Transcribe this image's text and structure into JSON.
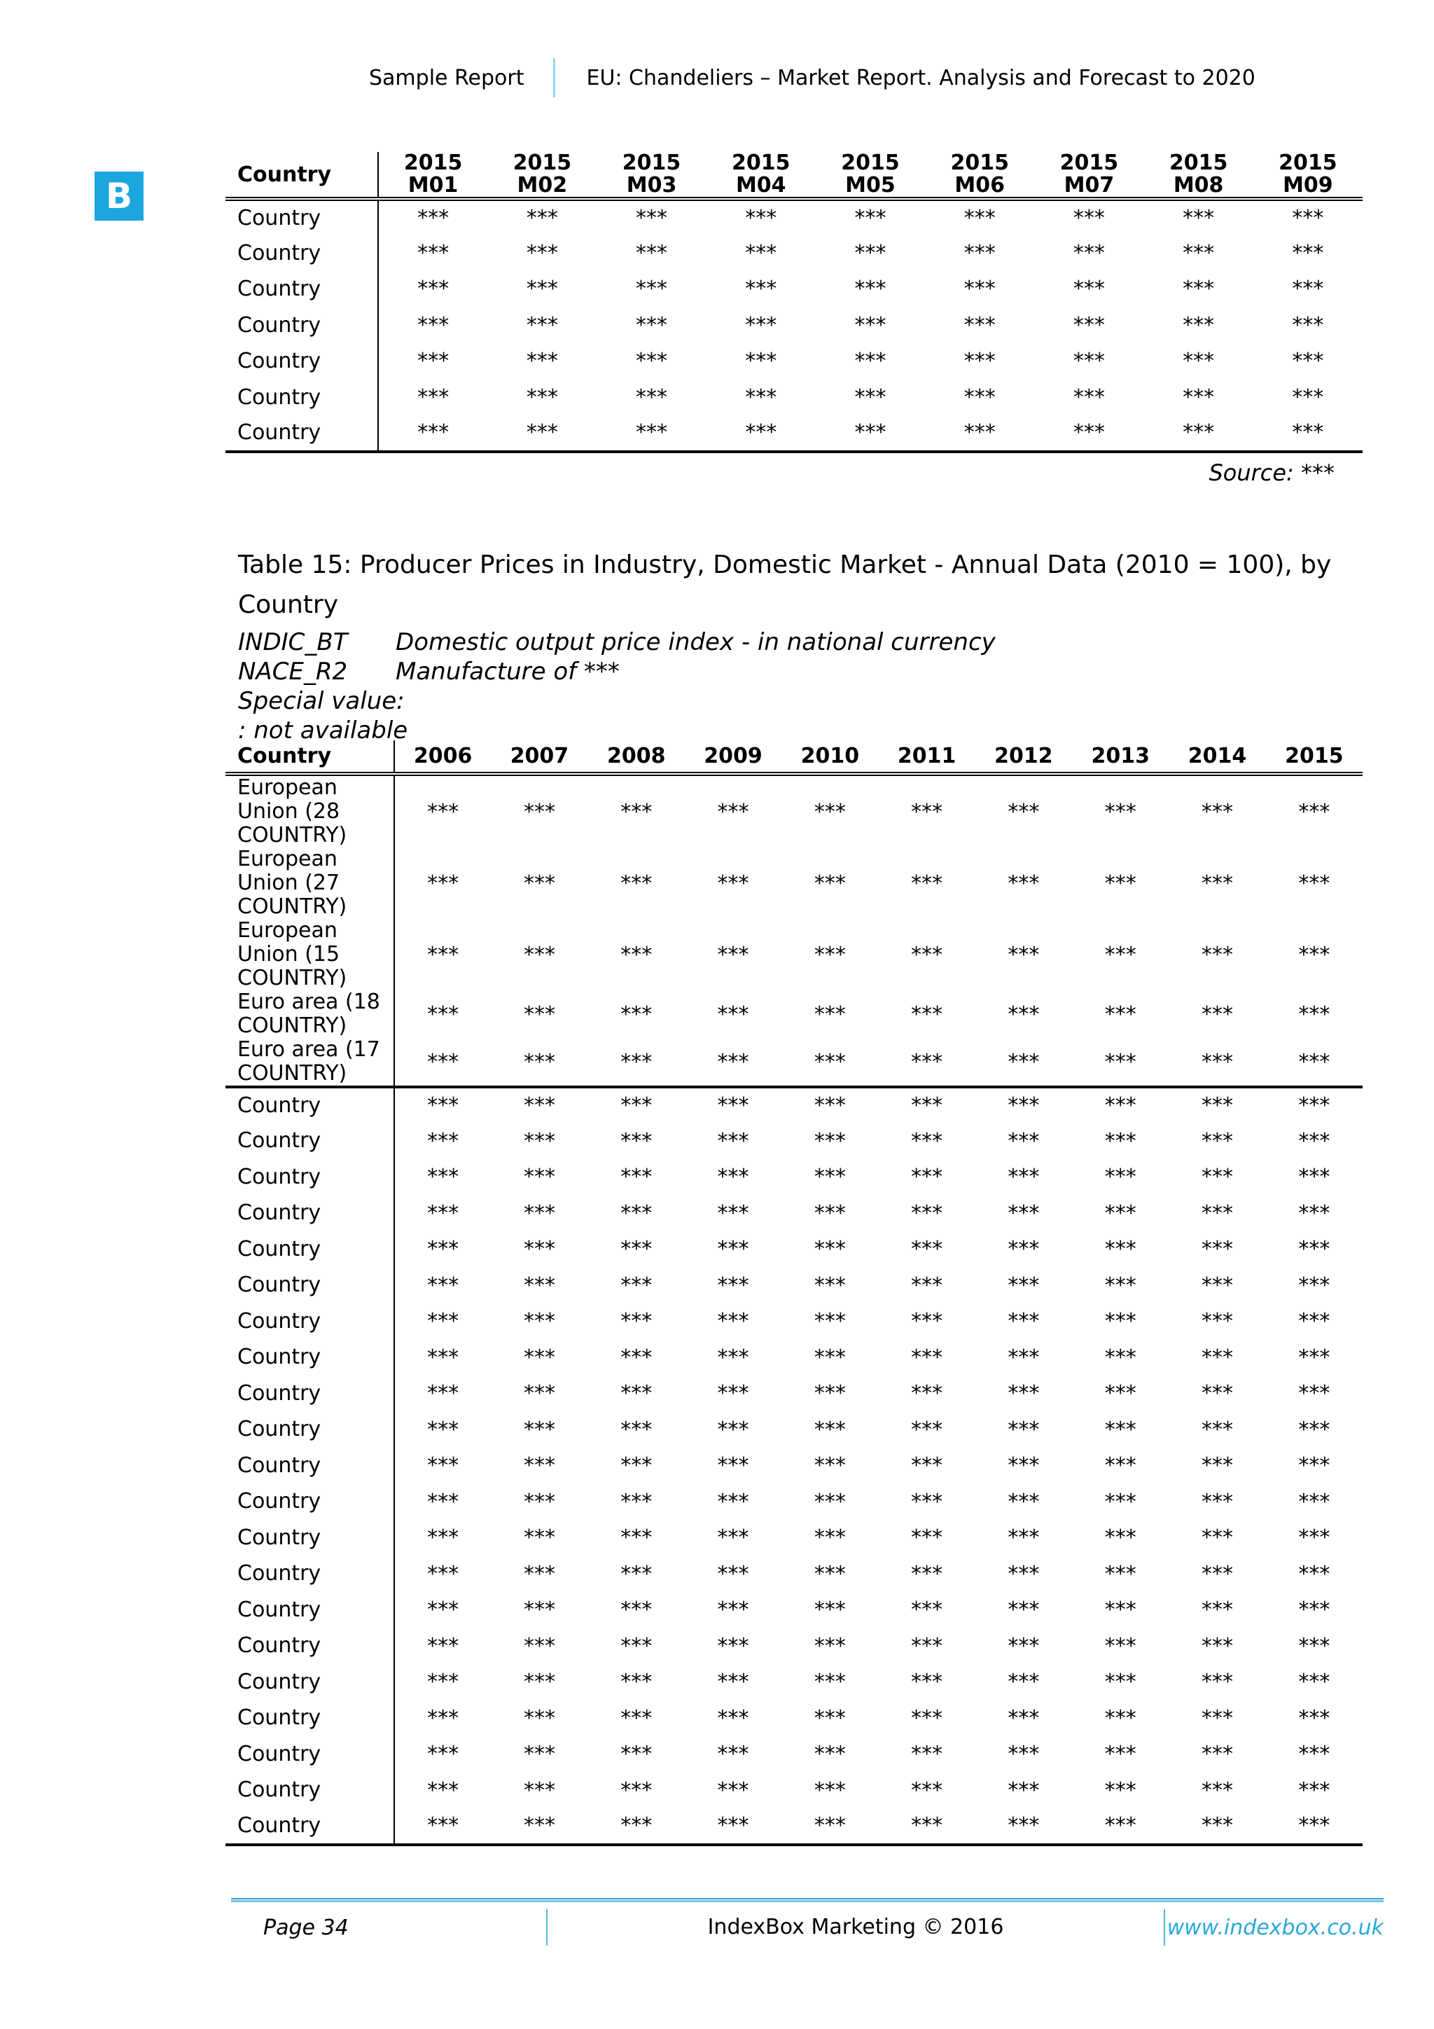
{
  "header": {
    "sample_label": "Sample Report",
    "title": "EU: Chandeliers – Market Report. Analysis and Forecast to 2020"
  },
  "logo_letter": "B",
  "colors": {
    "accent_blue": "#1ca6e0",
    "link_blue": "#29a8db",
    "footer_line_blue": "#6ec9ea"
  },
  "monthly_table": {
    "country_header": "Country",
    "year": "2015",
    "months": [
      "M01",
      "M02",
      "M03",
      "M04",
      "M05",
      "M06",
      "M07",
      "M08",
      "M09"
    ],
    "rows": [
      {
        "label": "Country",
        "values": [
          "***",
          "***",
          "***",
          "***",
          "***",
          "***",
          "***",
          "***",
          "***"
        ]
      },
      {
        "label": "Country",
        "values": [
          "***",
          "***",
          "***",
          "***",
          "***",
          "***",
          "***",
          "***",
          "***"
        ]
      },
      {
        "label": "Country",
        "values": [
          "***",
          "***",
          "***",
          "***",
          "***",
          "***",
          "***",
          "***",
          "***"
        ]
      },
      {
        "label": "Country",
        "values": [
          "***",
          "***",
          "***",
          "***",
          "***",
          "***",
          "***",
          "***",
          "***"
        ]
      },
      {
        "label": "Country",
        "values": [
          "***",
          "***",
          "***",
          "***",
          "***",
          "***",
          "***",
          "***",
          "***"
        ]
      },
      {
        "label": "Country",
        "values": [
          "***",
          "***",
          "***",
          "***",
          "***",
          "***",
          "***",
          "***",
          "***"
        ]
      },
      {
        "label": "Country",
        "values": [
          "***",
          "***",
          "***",
          "***",
          "***",
          "***",
          "***",
          "***",
          "***"
        ]
      }
    ],
    "source_label": "Source:",
    "source_value": "***"
  },
  "table15": {
    "title_lines": [
      "Table 15: Producer Prices in Industry, Domestic Market - Annual Data (2010 = 100), by",
      "Country"
    ],
    "meta": {
      "indic_code": "INDIC_BT",
      "indic_desc": "Domestic output price index - in national currency",
      "nace_code": "NACE_R2",
      "nace_desc": "Manufacture of ***",
      "special_value_label": "Special value:",
      "special_value_note": ": not available"
    },
    "country_header": "Country",
    "years": [
      "2006",
      "2007",
      "2008",
      "2009",
      "2010",
      "2011",
      "2012",
      "2013",
      "2014",
      "2015"
    ],
    "eu_rows": [
      {
        "label": "European Union (28 COUNTRY)",
        "values": [
          "***",
          "***",
          "***",
          "***",
          "***",
          "***",
          "***",
          "***",
          "***",
          "***"
        ]
      },
      {
        "label": "European Union (27 COUNTRY)",
        "values": [
          "***",
          "***",
          "***",
          "***",
          "***",
          "***",
          "***",
          "***",
          "***",
          "***"
        ]
      },
      {
        "label": "European Union (15 COUNTRY)",
        "values": [
          "***",
          "***",
          "***",
          "***",
          "***",
          "***",
          "***",
          "***",
          "***",
          "***"
        ]
      },
      {
        "label": "Euro area (18 COUNTRY)",
        "values": [
          "***",
          "***",
          "***",
          "***",
          "***",
          "***",
          "***",
          "***",
          "***",
          "***"
        ]
      },
      {
        "label": "Euro area (17 COUNTRY)",
        "values": [
          "***",
          "***",
          "***",
          "***",
          "***",
          "***",
          "***",
          "***",
          "***",
          "***"
        ]
      }
    ],
    "country_rows": [
      {
        "label": "Country",
        "values": [
          "***",
          "***",
          "***",
          "***",
          "***",
          "***",
          "***",
          "***",
          "***",
          "***"
        ]
      },
      {
        "label": "Country",
        "values": [
          "***",
          "***",
          "***",
          "***",
          "***",
          "***",
          "***",
          "***",
          "***",
          "***"
        ]
      },
      {
        "label": "Country",
        "values": [
          "***",
          "***",
          "***",
          "***",
          "***",
          "***",
          "***",
          "***",
          "***",
          "***"
        ]
      },
      {
        "label": "Country",
        "values": [
          "***",
          "***",
          "***",
          "***",
          "***",
          "***",
          "***",
          "***",
          "***",
          "***"
        ]
      },
      {
        "label": "Country",
        "values": [
          "***",
          "***",
          "***",
          "***",
          "***",
          "***",
          "***",
          "***",
          "***",
          "***"
        ]
      },
      {
        "label": "Country",
        "values": [
          "***",
          "***",
          "***",
          "***",
          "***",
          "***",
          "***",
          "***",
          "***",
          "***"
        ]
      },
      {
        "label": "Country",
        "values": [
          "***",
          "***",
          "***",
          "***",
          "***",
          "***",
          "***",
          "***",
          "***",
          "***"
        ]
      },
      {
        "label": "Country",
        "values": [
          "***",
          "***",
          "***",
          "***",
          "***",
          "***",
          "***",
          "***",
          "***",
          "***"
        ]
      },
      {
        "label": "Country",
        "values": [
          "***",
          "***",
          "***",
          "***",
          "***",
          "***",
          "***",
          "***",
          "***",
          "***"
        ]
      },
      {
        "label": "Country",
        "values": [
          "***",
          "***",
          "***",
          "***",
          "***",
          "***",
          "***",
          "***",
          "***",
          "***"
        ]
      },
      {
        "label": "Country",
        "values": [
          "***",
          "***",
          "***",
          "***",
          "***",
          "***",
          "***",
          "***",
          "***",
          "***"
        ]
      },
      {
        "label": "Country",
        "values": [
          "***",
          "***",
          "***",
          "***",
          "***",
          "***",
          "***",
          "***",
          "***",
          "***"
        ]
      },
      {
        "label": "Country",
        "values": [
          "***",
          "***",
          "***",
          "***",
          "***",
          "***",
          "***",
          "***",
          "***",
          "***"
        ]
      },
      {
        "label": "Country",
        "values": [
          "***",
          "***",
          "***",
          "***",
          "***",
          "***",
          "***",
          "***",
          "***",
          "***"
        ]
      },
      {
        "label": "Country",
        "values": [
          "***",
          "***",
          "***",
          "***",
          "***",
          "***",
          "***",
          "***",
          "***",
          "***"
        ]
      },
      {
        "label": "Country",
        "values": [
          "***",
          "***",
          "***",
          "***",
          "***",
          "***",
          "***",
          "***",
          "***",
          "***"
        ]
      },
      {
        "label": "Country",
        "values": [
          "***",
          "***",
          "***",
          "***",
          "***",
          "***",
          "***",
          "***",
          "***",
          "***"
        ]
      },
      {
        "label": "Country",
        "values": [
          "***",
          "***",
          "***",
          "***",
          "***",
          "***",
          "***",
          "***",
          "***",
          "***"
        ]
      },
      {
        "label": "Country",
        "values": [
          "***",
          "***",
          "***",
          "***",
          "***",
          "***",
          "***",
          "***",
          "***",
          "***"
        ]
      },
      {
        "label": "Country",
        "values": [
          "***",
          "***",
          "***",
          "***",
          "***",
          "***",
          "***",
          "***",
          "***",
          "***"
        ]
      },
      {
        "label": "Country",
        "values": [
          "***",
          "***",
          "***",
          "***",
          "***",
          "***",
          "***",
          "***",
          "***",
          "***"
        ]
      }
    ]
  },
  "footer": {
    "page_label": "Page 34",
    "copyright": "IndexBox Marketing © 2016",
    "website": "www.indexbox.co.uk"
  }
}
